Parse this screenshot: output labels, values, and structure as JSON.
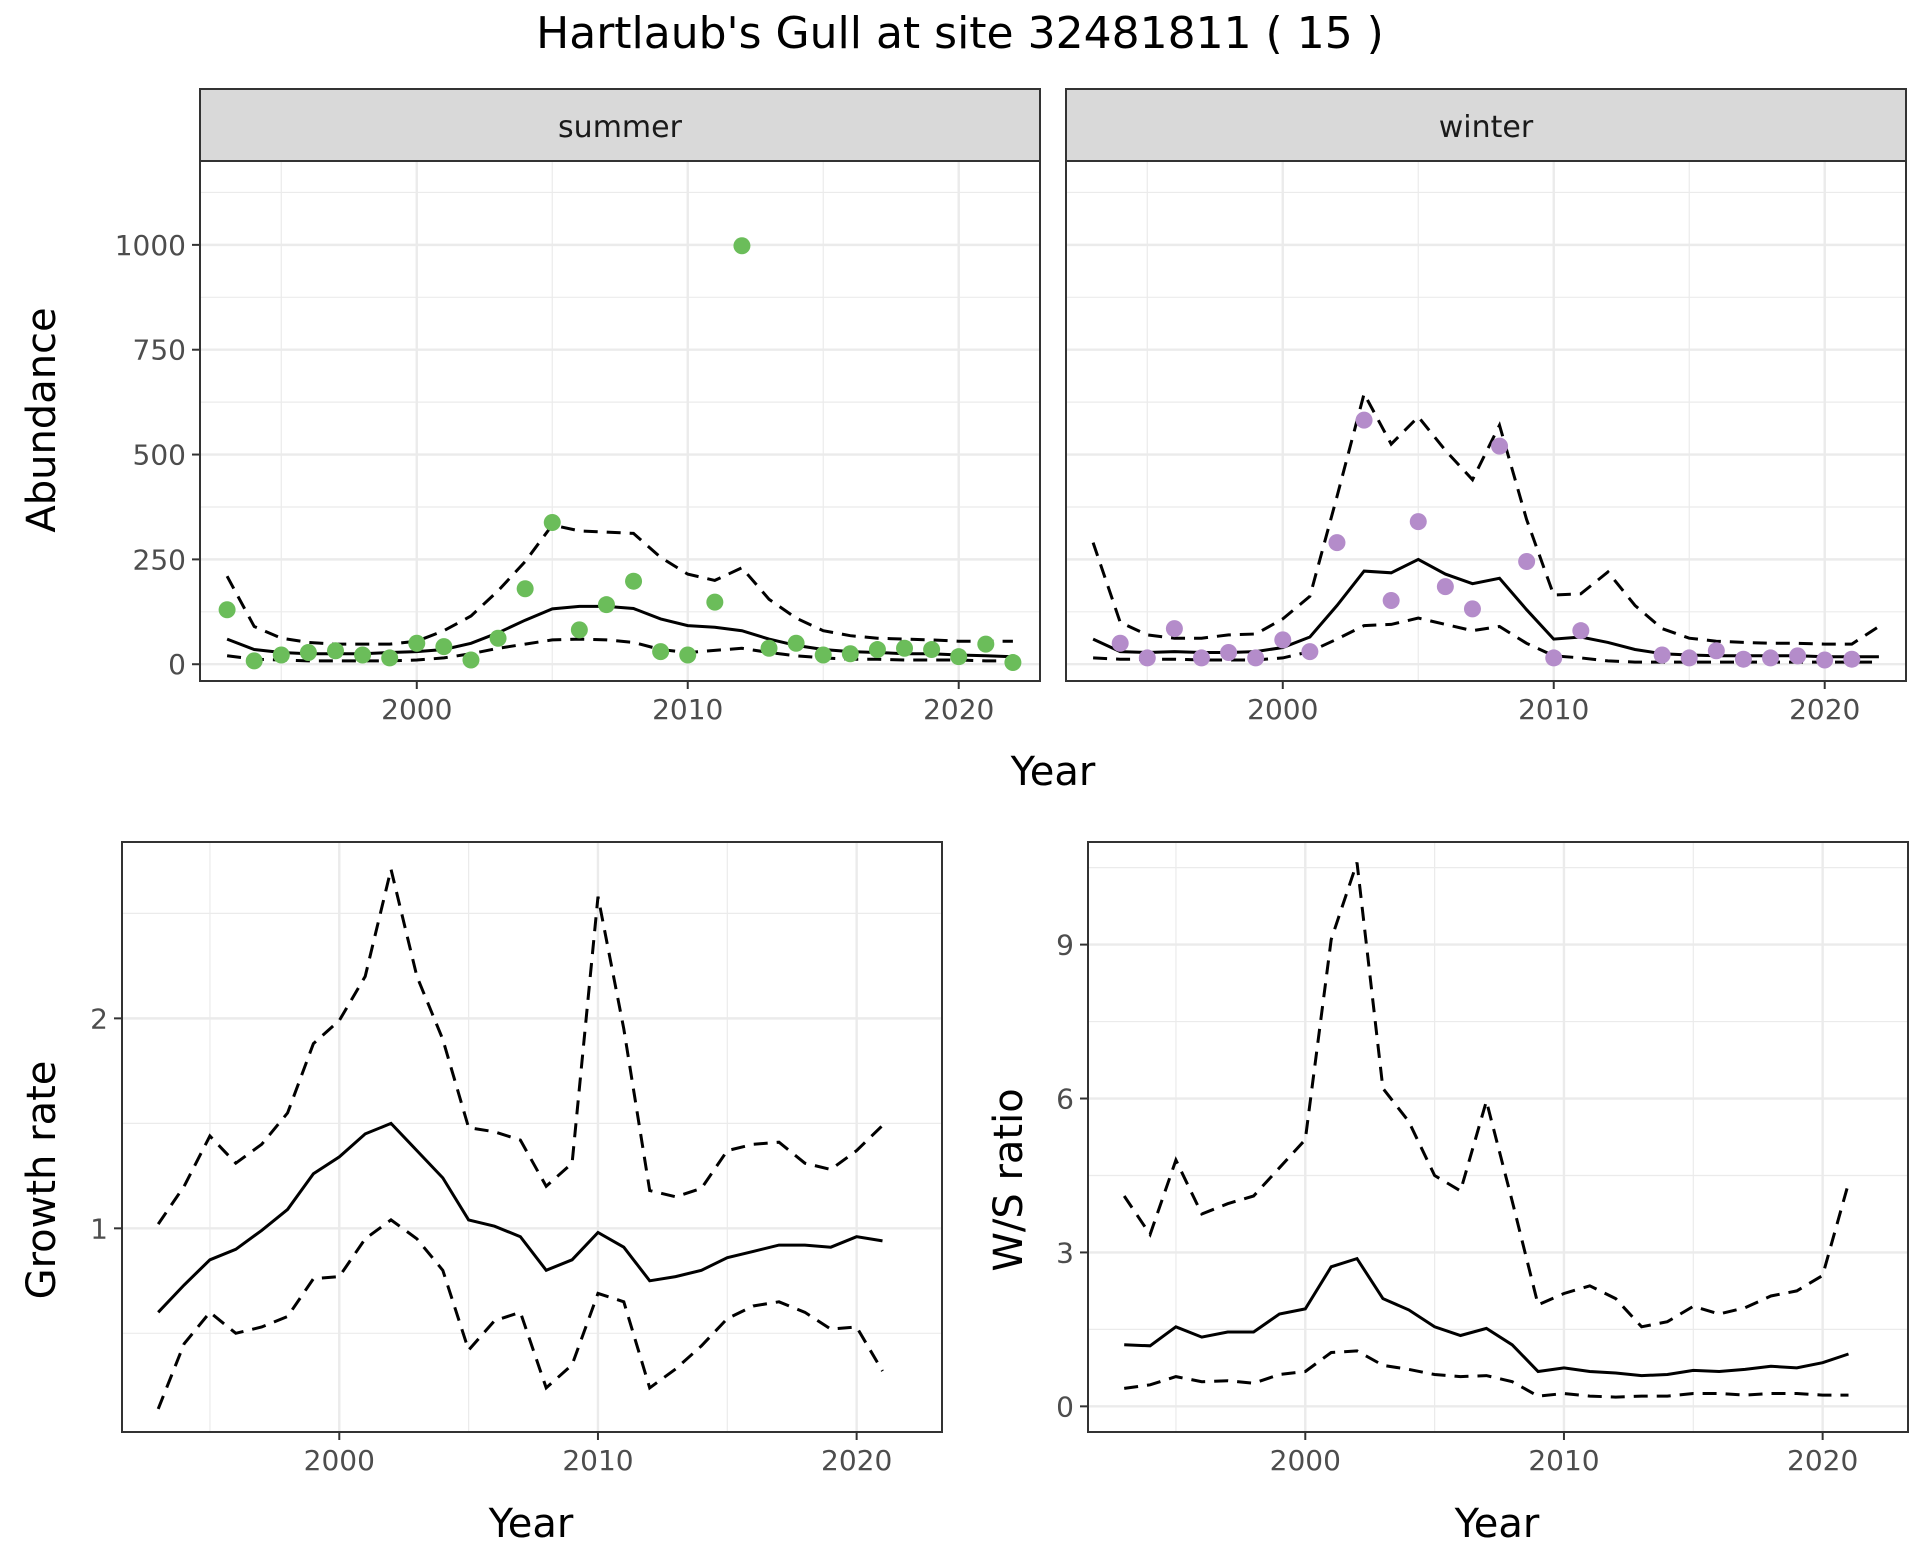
{
  "title": "Hartlaub's Gull at site 32481811 ( 15 )",
  "colors": {
    "summer_points": "#6bbd5a",
    "winter_points": "#b48cca",
    "line": "#000000",
    "grid": "#ebebeb",
    "strip": "#d9d9d9"
  },
  "chart_data": [
    {
      "type": "scatter",
      "panel": "summer",
      "strip_label": "summer",
      "ylabel": "Abundance",
      "xlabel": "Year",
      "xlim": [
        1992,
        2023
      ],
      "ylim": [
        -40,
        1200
      ],
      "xticks": [
        2000,
        2010,
        2020
      ],
      "yticks": [
        0,
        250,
        500,
        750,
        1000
      ],
      "grid": true,
      "points": {
        "x": [
          1993,
          1994,
          1995,
          1996,
          1997,
          1998,
          1999,
          2000,
          2001,
          2002,
          2003,
          2004,
          2005,
          2006,
          2007,
          2008,
          2009,
          2010,
          2011,
          2012,
          2013,
          2014,
          2015,
          2016,
          2017,
          2018,
          2019,
          2020,
          2021,
          2022
        ],
        "y": [
          130,
          8,
          22,
          28,
          32,
          22,
          15,
          50,
          42,
          10,
          62,
          180,
          338,
          82,
          142,
          198,
          30,
          22,
          148,
          998,
          38,
          50,
          22,
          25,
          35,
          38,
          35,
          18,
          48,
          4
        ]
      },
      "fit": {
        "x": [
          1993,
          1994,
          1995,
          1996,
          1997,
          1998,
          1999,
          2000,
          2001,
          2002,
          2003,
          2004,
          2005,
          2006,
          2007,
          2008,
          2009,
          2010,
          2011,
          2012,
          2013,
          2014,
          2015,
          2016,
          2017,
          2018,
          2019,
          2020,
          2021,
          2022
        ],
        "mean": [
          60,
          35,
          28,
          25,
          25,
          25,
          28,
          30,
          35,
          50,
          75,
          105,
          132,
          138,
          138,
          133,
          108,
          92,
          88,
          80,
          60,
          45,
          35,
          30,
          28,
          25,
          25,
          22,
          20,
          18
        ],
        "lower": [
          20,
          12,
          10,
          8,
          8,
          8,
          8,
          10,
          15,
          25,
          38,
          48,
          58,
          60,
          58,
          52,
          35,
          28,
          33,
          38,
          28,
          20,
          15,
          12,
          12,
          10,
          10,
          10,
          8,
          8
        ],
        "upper": [
          210,
          90,
          62,
          52,
          48,
          48,
          48,
          55,
          80,
          115,
          175,
          245,
          332,
          318,
          315,
          312,
          255,
          215,
          200,
          230,
          155,
          110,
          80,
          68,
          62,
          60,
          58,
          55,
          55,
          55
        ]
      }
    },
    {
      "type": "scatter",
      "panel": "winter",
      "strip_label": "winter",
      "xlabel": "Year",
      "xlim": [
        1992,
        2023
      ],
      "ylim": [
        -40,
        1200
      ],
      "xticks": [
        2000,
        2010,
        2020
      ],
      "grid": true,
      "points": {
        "x": [
          1994,
          1995,
          1996,
          1997,
          1998,
          1999,
          2000,
          2001,
          2002,
          2003,
          2004,
          2005,
          2006,
          2007,
          2008,
          2009,
          2010,
          2011,
          2014,
          2015,
          2016,
          2017,
          2018,
          2019,
          2020,
          2021
        ],
        "y": [
          50,
          15,
          85,
          15,
          28,
          15,
          58,
          30,
          290,
          582,
          152,
          340,
          185,
          132,
          520,
          245,
          15,
          80,
          22,
          15,
          32,
          12,
          15,
          20,
          10,
          12
        ]
      },
      "fit": {
        "x": [
          1993,
          1994,
          1995,
          1996,
          1997,
          1998,
          1999,
          2000,
          2001,
          2002,
          2003,
          2004,
          2005,
          2006,
          2007,
          2008,
          2009,
          2010,
          2011,
          2012,
          2013,
          2014,
          2015,
          2016,
          2017,
          2018,
          2019,
          2020,
          2021,
          2022
        ],
        "mean": [
          60,
          30,
          28,
          30,
          28,
          28,
          30,
          40,
          65,
          140,
          222,
          218,
          250,
          215,
          192,
          205,
          130,
          60,
          65,
          52,
          35,
          25,
          22,
          20,
          20,
          20,
          20,
          18,
          18,
          18
        ],
        "lower": [
          15,
          12,
          12,
          12,
          10,
          10,
          10,
          15,
          30,
          60,
          92,
          95,
          110,
          95,
          80,
          90,
          50,
          20,
          15,
          8,
          5,
          5,
          5,
          5,
          5,
          5,
          5,
          5,
          5,
          5
        ],
        "upper": [
          290,
          100,
          70,
          62,
          62,
          70,
          72,
          108,
          162,
          400,
          645,
          525,
          590,
          510,
          440,
          570,
          345,
          165,
          168,
          220,
          140,
          85,
          62,
          55,
          52,
          50,
          50,
          48,
          48,
          90
        ]
      }
    },
    {
      "type": "line",
      "panel": "growth",
      "ylabel": "Growth rate",
      "xlabel": "Year",
      "xlim": [
        1991.6,
        2023.3
      ],
      "ylim": [
        0.03,
        2.84
      ],
      "xticks": [
        2000,
        2010,
        2020
      ],
      "yticks": [
        1,
        2
      ],
      "grid": true,
      "series": {
        "x": [
          1993,
          1994,
          1995,
          1996,
          1997,
          1998,
          1999,
          2000,
          2001,
          2002,
          2003,
          2004,
          2005,
          2006,
          2007,
          2008,
          2009,
          2010,
          2011,
          2012,
          2013,
          2014,
          2015,
          2016,
          2017,
          2018,
          2019,
          2020,
          2021
        ],
        "mean": [
          0.6,
          0.73,
          0.85,
          0.9,
          0.99,
          1.09,
          1.26,
          1.34,
          1.45,
          1.5,
          1.37,
          1.24,
          1.04,
          1.01,
          0.96,
          0.8,
          0.85,
          0.98,
          0.91,
          0.75,
          0.77,
          0.8,
          0.86,
          0.89,
          0.92,
          0.92,
          0.91,
          0.96,
          0.94
        ],
        "lower": [
          0.14,
          0.45,
          0.6,
          0.5,
          0.53,
          0.58,
          0.76,
          0.77,
          0.95,
          1.04,
          0.95,
          0.8,
          0.42,
          0.56,
          0.6,
          0.24,
          0.35,
          0.69,
          0.65,
          0.24,
          0.33,
          0.44,
          0.57,
          0.63,
          0.65,
          0.6,
          0.52,
          0.53,
          0.32
        ],
        "upper": [
          1.02,
          1.2,
          1.44,
          1.31,
          1.4,
          1.55,
          1.88,
          1.99,
          2.2,
          2.71,
          2.2,
          1.9,
          1.48,
          1.46,
          1.42,
          1.2,
          1.31,
          2.58,
          1.95,
          1.18,
          1.15,
          1.19,
          1.37,
          1.4,
          1.41,
          1.31,
          1.28,
          1.37,
          1.49
        ]
      }
    },
    {
      "type": "line",
      "panel": "ratio",
      "ylabel": "W/S ratio",
      "xlabel": "Year",
      "xlim": [
        1991.6,
        2023.3
      ],
      "ylim": [
        -0.5,
        11.0
      ],
      "xticks": [
        2000,
        2010,
        2020
      ],
      "yticks": [
        0,
        3,
        6,
        9
      ],
      "grid": true,
      "series": {
        "x": [
          1993,
          1994,
          1995,
          1996,
          1997,
          1998,
          1999,
          2000,
          2001,
          2002,
          2003,
          2004,
          2005,
          2006,
          2007,
          2008,
          2009,
          2010,
          2011,
          2012,
          2013,
          2014,
          2015,
          2016,
          2017,
          2018,
          2019,
          2020,
          2021
        ],
        "mean": [
          1.2,
          1.18,
          1.55,
          1.35,
          1.45,
          1.45,
          1.8,
          1.9,
          2.72,
          2.88,
          2.1,
          1.88,
          1.55,
          1.38,
          1.52,
          1.2,
          0.68,
          0.75,
          0.68,
          0.65,
          0.6,
          0.62,
          0.7,
          0.68,
          0.72,
          0.78,
          0.75,
          0.85,
          1.02
        ],
        "lower": [
          0.35,
          0.42,
          0.58,
          0.48,
          0.5,
          0.45,
          0.62,
          0.68,
          1.05,
          1.08,
          0.8,
          0.72,
          0.62,
          0.58,
          0.6,
          0.48,
          0.2,
          0.25,
          0.2,
          0.18,
          0.2,
          0.2,
          0.25,
          0.25,
          0.22,
          0.25,
          0.25,
          0.22,
          0.22
        ],
        "upper": [
          4.1,
          3.35,
          4.8,
          3.75,
          3.95,
          4.1,
          4.65,
          5.2,
          9.1,
          10.6,
          6.2,
          5.55,
          4.5,
          4.2,
          5.95,
          4.0,
          1.98,
          2.2,
          2.35,
          2.1,
          1.55,
          1.65,
          1.95,
          1.8,
          1.92,
          2.15,
          2.25,
          2.55,
          4.35
        ]
      }
    }
  ]
}
